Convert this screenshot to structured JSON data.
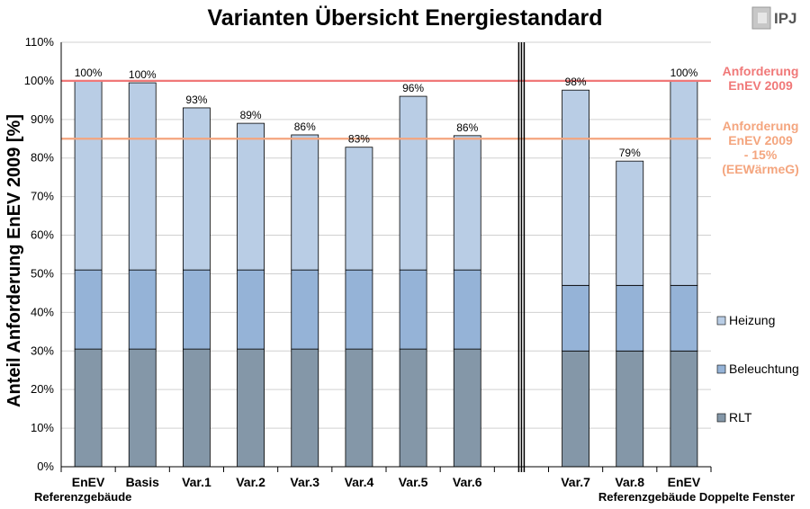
{
  "chart_data": {
    "type": "bar",
    "stacked": true,
    "title": "Varianten Übersicht Energiestandard",
    "ylabel": "Anteil Anforderung EnEV 2009 [%]",
    "ylim": [
      0,
      110
    ],
    "yticks": [
      "0%",
      "10%",
      "20%",
      "30%",
      "40%",
      "50%",
      "60%",
      "70%",
      "80%",
      "90%",
      "100%",
      "110%"
    ],
    "categories": [
      "EnEV",
      "Basis",
      "Var.1",
      "Var.2",
      "Var.3",
      "Var.4",
      "Var.5",
      "Var.6",
      "Var.7",
      "Var.8",
      "EnEV"
    ],
    "groups": [
      {
        "label": "Referenzgebäude",
        "categories": [
          0,
          1,
          2,
          3,
          4,
          5,
          6,
          7
        ]
      },
      {
        "label": "Referenzgebäude Doppelte Fenster",
        "categories": [
          8,
          9,
          10
        ]
      }
    ],
    "series": [
      {
        "name": "RLT",
        "color": "#8497a8",
        "values": [
          30.5,
          30.5,
          30.5,
          30.5,
          30.5,
          30.5,
          30.5,
          30.5,
          30,
          30,
          30
        ]
      },
      {
        "name": "Beleuchtung",
        "color": "#95b3d7",
        "values": [
          20.5,
          20.5,
          20.5,
          20.5,
          20.5,
          20.5,
          20.5,
          20.5,
          17,
          17,
          17
        ]
      },
      {
        "name": "Heizung",
        "color": "#b9cde5",
        "values": [
          49,
          48.5,
          42,
          38,
          35,
          31.8,
          45,
          34.8,
          50.6,
          32.2,
          53
        ]
      }
    ],
    "data_labels": [
      "100%",
      "100%",
      "93%",
      "89%",
      "86%",
      "83%",
      "96%",
      "86%",
      "98%",
      "79%",
      "100%"
    ],
    "reference_lines": [
      {
        "value": 100,
        "color": "#f07878",
        "label_lines": [
          "Anforderung",
          "EnEV 2009"
        ]
      },
      {
        "value": 85,
        "color": "#f4a57e",
        "label_lines": [
          "Anforderung",
          "EnEV 2009",
          "- 15%",
          "(EEWärmeG)"
        ]
      }
    ],
    "grid": true,
    "legend_position": "right"
  },
  "logo": {
    "text": "IPJ"
  }
}
